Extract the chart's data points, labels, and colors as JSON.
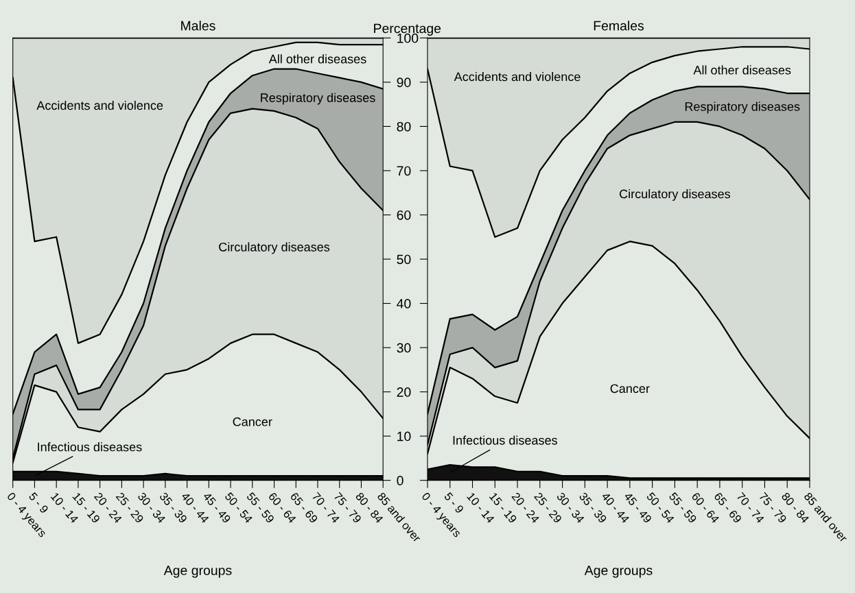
{
  "chart_data": [
    {
      "type": "area",
      "title": "Males",
      "xlabel": "Age groups",
      "ylabel": "Percentage",
      "stacked": true,
      "ylim": [
        0,
        100
      ],
      "yticks": [
        0,
        10,
        20,
        30,
        40,
        50,
        60,
        70,
        80,
        90,
        100
      ],
      "categories": [
        "0 - 4 years",
        "5 - 9",
        "10 - 14",
        "15 - 19",
        "20 - 24",
        "25 - 29",
        "30 - 34",
        "35 - 39",
        "40 - 44",
        "45 - 49",
        "50 - 54",
        "55 - 59",
        "60 - 64",
        "65 - 69",
        "70 - 74",
        "75 - 79",
        "80 - 84",
        "85 and over"
      ],
      "series": [
        {
          "name": "Infectious diseases",
          "color": "#111111",
          "values": [
            2,
            2,
            2,
            1.5,
            1,
            1,
            1,
            1.5,
            1,
            1,
            1,
            1,
            1,
            1,
            1,
            1,
            1,
            1
          ]
        },
        {
          "name": "Cancer",
          "color": "#e3eae3",
          "values": [
            2,
            19.5,
            18,
            10.5,
            10,
            15,
            18.5,
            22.5,
            24,
            26.5,
            30,
            32,
            32,
            30,
            28,
            24,
            19,
            13
          ]
        },
        {
          "name": "Circulatory diseases",
          "color": "#d5dbd5",
          "values": [
            1,
            2.5,
            6,
            4,
            5,
            9,
            15.5,
            29,
            41,
            49.5,
            52,
            51,
            50.5,
            51,
            50.5,
            47,
            46,
            47
          ]
        },
        {
          "name": "Respiratory diseases",
          "color": "#a8aca8",
          "values": [
            10,
            5,
            7,
            3.5,
            5,
            4,
            5,
            4,
            4,
            4,
            4.5,
            7.5,
            9.5,
            11,
            12.5,
            19,
            24,
            27.5
          ]
        },
        {
          "name": "All other diseases",
          "color": "#e3eae3",
          "values": [
            76,
            25,
            22,
            11.5,
            12,
            13,
            14,
            12,
            11,
            9,
            6.5,
            5.5,
            5,
            6,
            7,
            7.5,
            8.5,
            10
          ]
        },
        {
          "name": "Accidents and violence",
          "color": "#d5dbd5",
          "values": [
            9,
            46,
            45,
            69,
            67,
            58,
            46,
            31,
            19,
            10,
            6,
            3,
            2,
            1,
            1,
            1.5,
            1.5,
            1.5
          ]
        }
      ]
    },
    {
      "type": "area",
      "title": "Females",
      "xlabel": "Age groups",
      "stacked": true,
      "ylim": [
        0,
        100
      ],
      "yticks": [
        0,
        10,
        20,
        30,
        40,
        50,
        60,
        70,
        80,
        90,
        100
      ],
      "tick_labels": "x",
      "categories": [
        "0 - 4 years",
        "5 - 9",
        "10 - 14",
        "15 - 19",
        "20 - 24",
        "25 - 29",
        "30 - 34",
        "35 - 39",
        "40 - 44",
        "45 - 49",
        "50 - 54",
        "55 - 59",
        "60 - 64",
        "65 - 69",
        "70 - 74",
        "75 - 79",
        "80 - 84",
        "85 and over"
      ],
      "series": [
        {
          "name": "Infectious diseases",
          "color": "#111111",
          "values": [
            2.5,
            3.5,
            3,
            3,
            2,
            2,
            1,
            1,
            1,
            0.5,
            0.5,
            0.5,
            0.5,
            0.5,
            0.5,
            0.5,
            0.5,
            0.5
          ]
        },
        {
          "name": "Cancer",
          "color": "#e3eae3",
          "values": [
            3.5,
            22,
            20,
            16,
            15.5,
            30.5,
            39,
            45,
            51,
            53.5,
            52.5,
            48.5,
            42.5,
            35.5,
            27.5,
            20.5,
            14,
            9
          ]
        },
        {
          "name": "Circulatory diseases",
          "color": "#d5dbd5",
          "values": [
            2,
            3,
            7,
            6.5,
            9.5,
            12.5,
            17,
            21,
            23,
            24,
            26.5,
            32,
            38,
            44,
            50,
            54,
            55.5,
            54
          ]
        },
        {
          "name": "Respiratory diseases",
          "color": "#a8aca8",
          "values": [
            7,
            8,
            7.5,
            8.5,
            10,
            4,
            4,
            3,
            3,
            5,
            6.5,
            7,
            8,
            9,
            11,
            13.5,
            17.5,
            24
          ]
        },
        {
          "name": "All other diseases",
          "color": "#e3eae3",
          "values": [
            78,
            34.5,
            32.5,
            21,
            20,
            21,
            16,
            12,
            10,
            9,
            8.5,
            8,
            8,
            8.5,
            9,
            9.5,
            10.5,
            10
          ]
        },
        {
          "name": "Accidents and violence",
          "color": "#d5dbd5",
          "values": [
            7,
            29,
            30,
            45,
            43,
            30,
            23,
            18,
            12,
            8,
            5.5,
            4,
            3,
            2.5,
            2,
            2,
            2,
            2.5
          ]
        }
      ]
    }
  ]
}
